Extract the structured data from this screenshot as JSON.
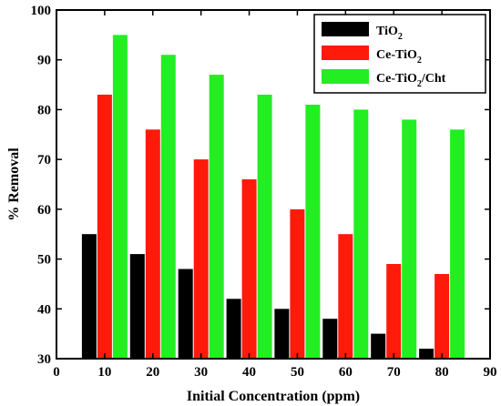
{
  "chart_data": {
    "type": "bar",
    "xlabel": "Initial Concentration (ppm)",
    "ylabel": "% Removal",
    "xlim": [
      0,
      90
    ],
    "ylim": [
      30,
      100
    ],
    "xticks": [
      0,
      10,
      20,
      30,
      40,
      50,
      60,
      70,
      80,
      90
    ],
    "yticks": [
      30,
      40,
      50,
      60,
      70,
      80,
      90,
      100
    ],
    "categories": [
      10,
      20,
      30,
      40,
      50,
      60,
      70,
      80
    ],
    "legend_position": "top-right",
    "grid": false,
    "series": [
      {
        "name": "TiO2",
        "sub": "2",
        "name_main": "TiO",
        "name_tail": "",
        "color": "#000000",
        "values": [
          55,
          51,
          48,
          42,
          40,
          38,
          35,
          32
        ]
      },
      {
        "name": "Ce-TiO2",
        "sub": "2",
        "name_main": "Ce-TiO",
        "name_tail": "",
        "color": "#ff1a0a",
        "values": [
          83,
          76,
          70,
          66,
          60,
          55,
          49,
          47
        ]
      },
      {
        "name": "Ce-TiO2/Cht",
        "sub": "2",
        "name_main": "Ce-TiO",
        "name_tail": "/Cht",
        "color": "#22ee22",
        "values": [
          95,
          91,
          87,
          83,
          81,
          80,
          78,
          76
        ]
      }
    ]
  }
}
